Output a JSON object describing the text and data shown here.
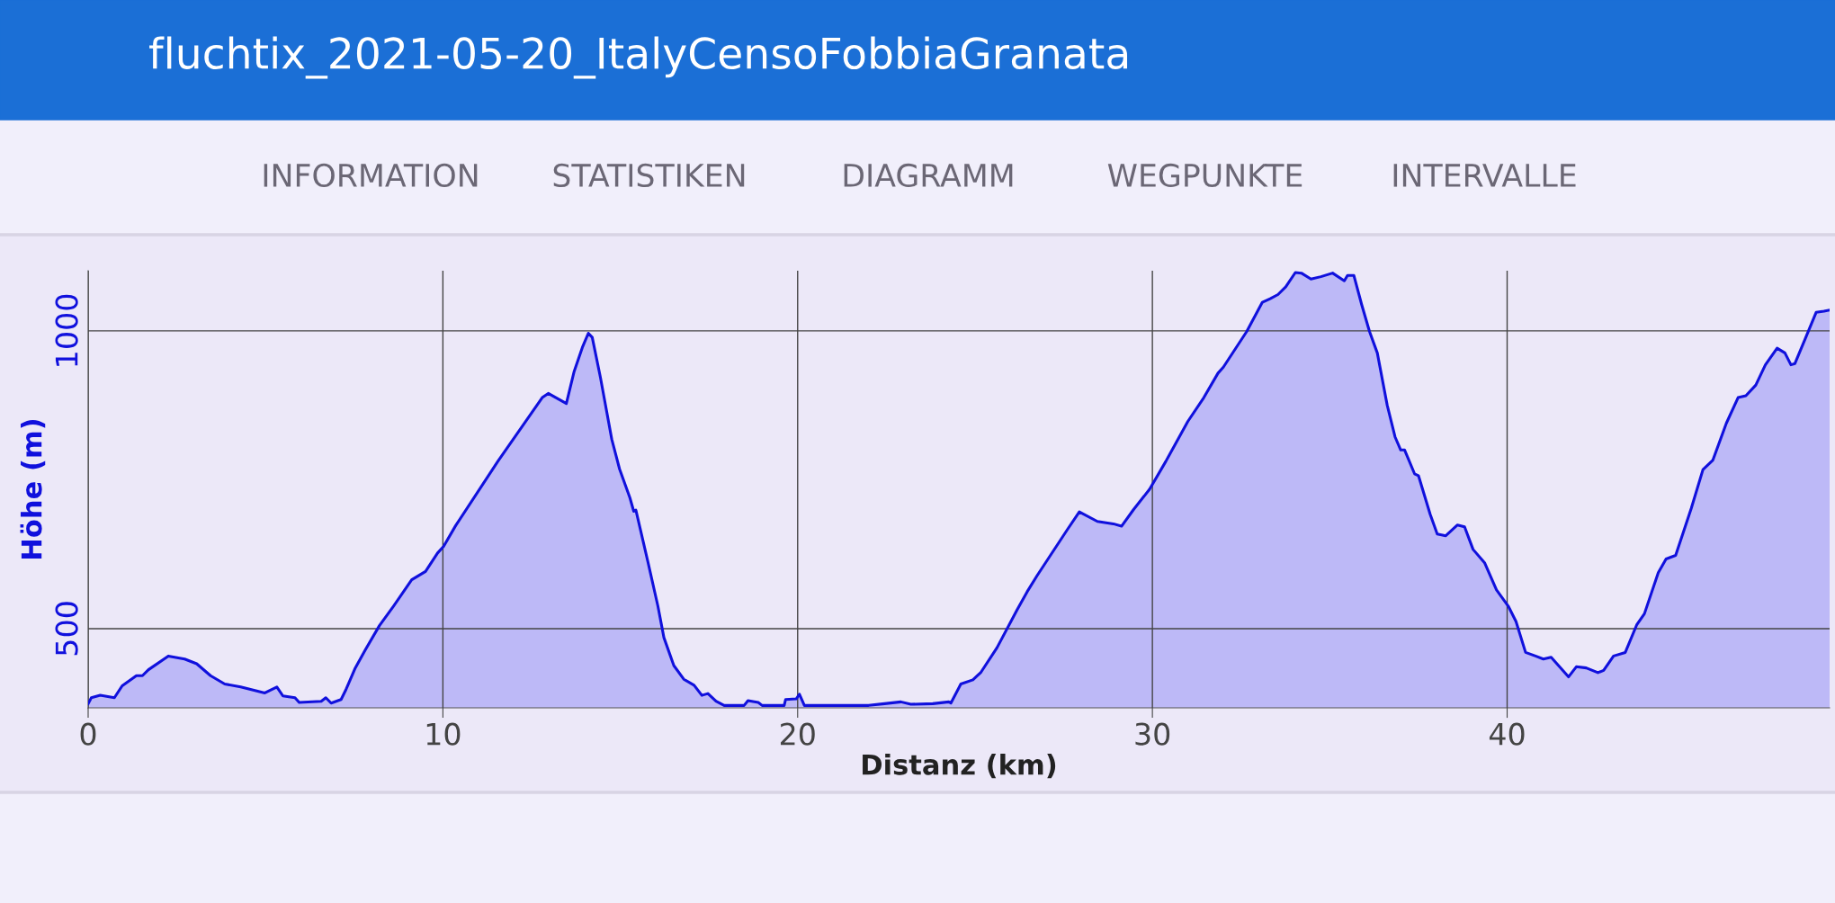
{
  "chart_data": {
    "type": "area",
    "title": "fluchtix_2021-05-20_ItalyCensoFobbiaGranata",
    "annotations": [
      "INFORMATION",
      "STATISTIKEN",
      "DIAGRAMM",
      "WEGPUNKTE",
      "INTERVALLE"
    ],
    "xlabel": "Distanz (km)",
    "ylabel": "Höhe (m)",
    "x": [
      0,
      0.09,
      0.34,
      0.74,
      0.96,
      1.36,
      1.53,
      1.7,
      2.26,
      2.72,
      3.06,
      3.45,
      3.85,
      4.3,
      4.98,
      5.32,
      5.49,
      5.83,
      5.95,
      6.57,
      6.7,
      6.85,
      7.13,
      7.27,
      7.53,
      7.81,
      8.21,
      8.61,
      9.12,
      9.51,
      9.85,
      10.02,
      10.36,
      11.55,
      12.8,
      12.97,
      13.48,
      13.7,
      13.93,
      14.1,
      14.21,
      14.44,
      14.76,
      14.98,
      15.27,
      15.38,
      15.44,
      15.78,
      16.06,
      16.23,
      16.51,
      16.79,
      17.08,
      17.3,
      17.47,
      17.7,
      17.93,
      18.49,
      18.6,
      18.89,
      19.0,
      19.62,
      19.66,
      19.96,
      20.05,
      20.19,
      22.0,
      22.45,
      22.91,
      23.19,
      23.81,
      24.26,
      24.32,
      24.6,
      24.94,
      25.17,
      25.62,
      26.19,
      26.47,
      26.75,
      27.6,
      27.94,
      28.45,
      28.9,
      29.13,
      29.47,
      29.92,
      30.38,
      31.0,
      31.45,
      31.85,
      32.0,
      32.66,
      33.1,
      33.32,
      33.54,
      33.76,
      34.03,
      34.2,
      34.47,
      34.75,
      35.08,
      35.41,
      35.5,
      35.68,
      35.9,
      36.12,
      36.34,
      36.62,
      36.84,
      37.0,
      37.11,
      37.39,
      37.5,
      37.83,
      38.03,
      38.27,
      38.6,
      38.8,
      39.04,
      39.37,
      39.7,
      40.03,
      40.25,
      40.52,
      40.8,
      41.02,
      41.24,
      41.73,
      41.95,
      42.23,
      42.56,
      42.72,
      43.0,
      43.33,
      43.65,
      43.87,
      44.26,
      44.48,
      44.75,
      45.19,
      45.52,
      45.8,
      46.18,
      46.51,
      46.73,
      47.01,
      47.28,
      47.61,
      47.83,
      48.0,
      48.11,
      48.44,
      48.71,
      48.93,
      49.09
    ],
    "series": [
      {
        "color": "#1010dd",
        "values": [
          374,
          384,
          388,
          384,
          404,
          421,
          421,
          431,
          454,
          449,
          441,
          421,
          407,
          402,
          392,
          402,
          387,
          384,
          376,
          378,
          384,
          375,
          381,
          398,
          434,
          464,
          505,
          538,
          582,
          596,
          627,
          638,
          673,
          781,
          888,
          895,
          878,
          932,
          972,
          996,
          989,
          922,
          818,
          768,
          720,
          697,
          699,
          612,
          538,
          485,
          438,
          415,
          405,
          388,
          391,
          378,
          371,
          371,
          379,
          376,
          371,
          371,
          381,
          382,
          390,
          371,
          371,
          374,
          377,
          373,
          374,
          377,
          375,
          407,
          414,
          427,
          468,
          532,
          562,
          589,
          666,
          696,
          680,
          676,
          672,
          700,
          734,
          781,
          848,
          888,
          929,
          939,
          999,
          1048,
          1054,
          1061,
          1074,
          1098,
          1097,
          1087,
          1091,
          1097,
          1084,
          1093,
          1093,
          1044,
          999,
          963,
          875,
          822,
          800,
          800,
          760,
          757,
          692,
          659,
          656,
          674,
          671,
          633,
          610,
          565,
          538,
          512,
          460,
          454,
          449,
          452,
          419,
          436,
          434,
          426,
          430,
          454,
          460,
          506,
          525,
          594,
          617,
          623,
          702,
          767,
          783,
          845,
          888,
          891,
          909,
          943,
          971,
          963,
          943,
          945,
          992,
          1031,
          1033,
          1035
        ]
      }
    ],
    "xlim": [
      0,
      49.09
    ],
    "ylim": [
      367,
      1101
    ],
    "xticks": [
      0,
      10,
      20,
      30,
      40
    ],
    "yticks": [
      500,
      1000
    ],
    "grid": true,
    "legend": false,
    "marker": "none",
    "line_style": "solid"
  }
}
